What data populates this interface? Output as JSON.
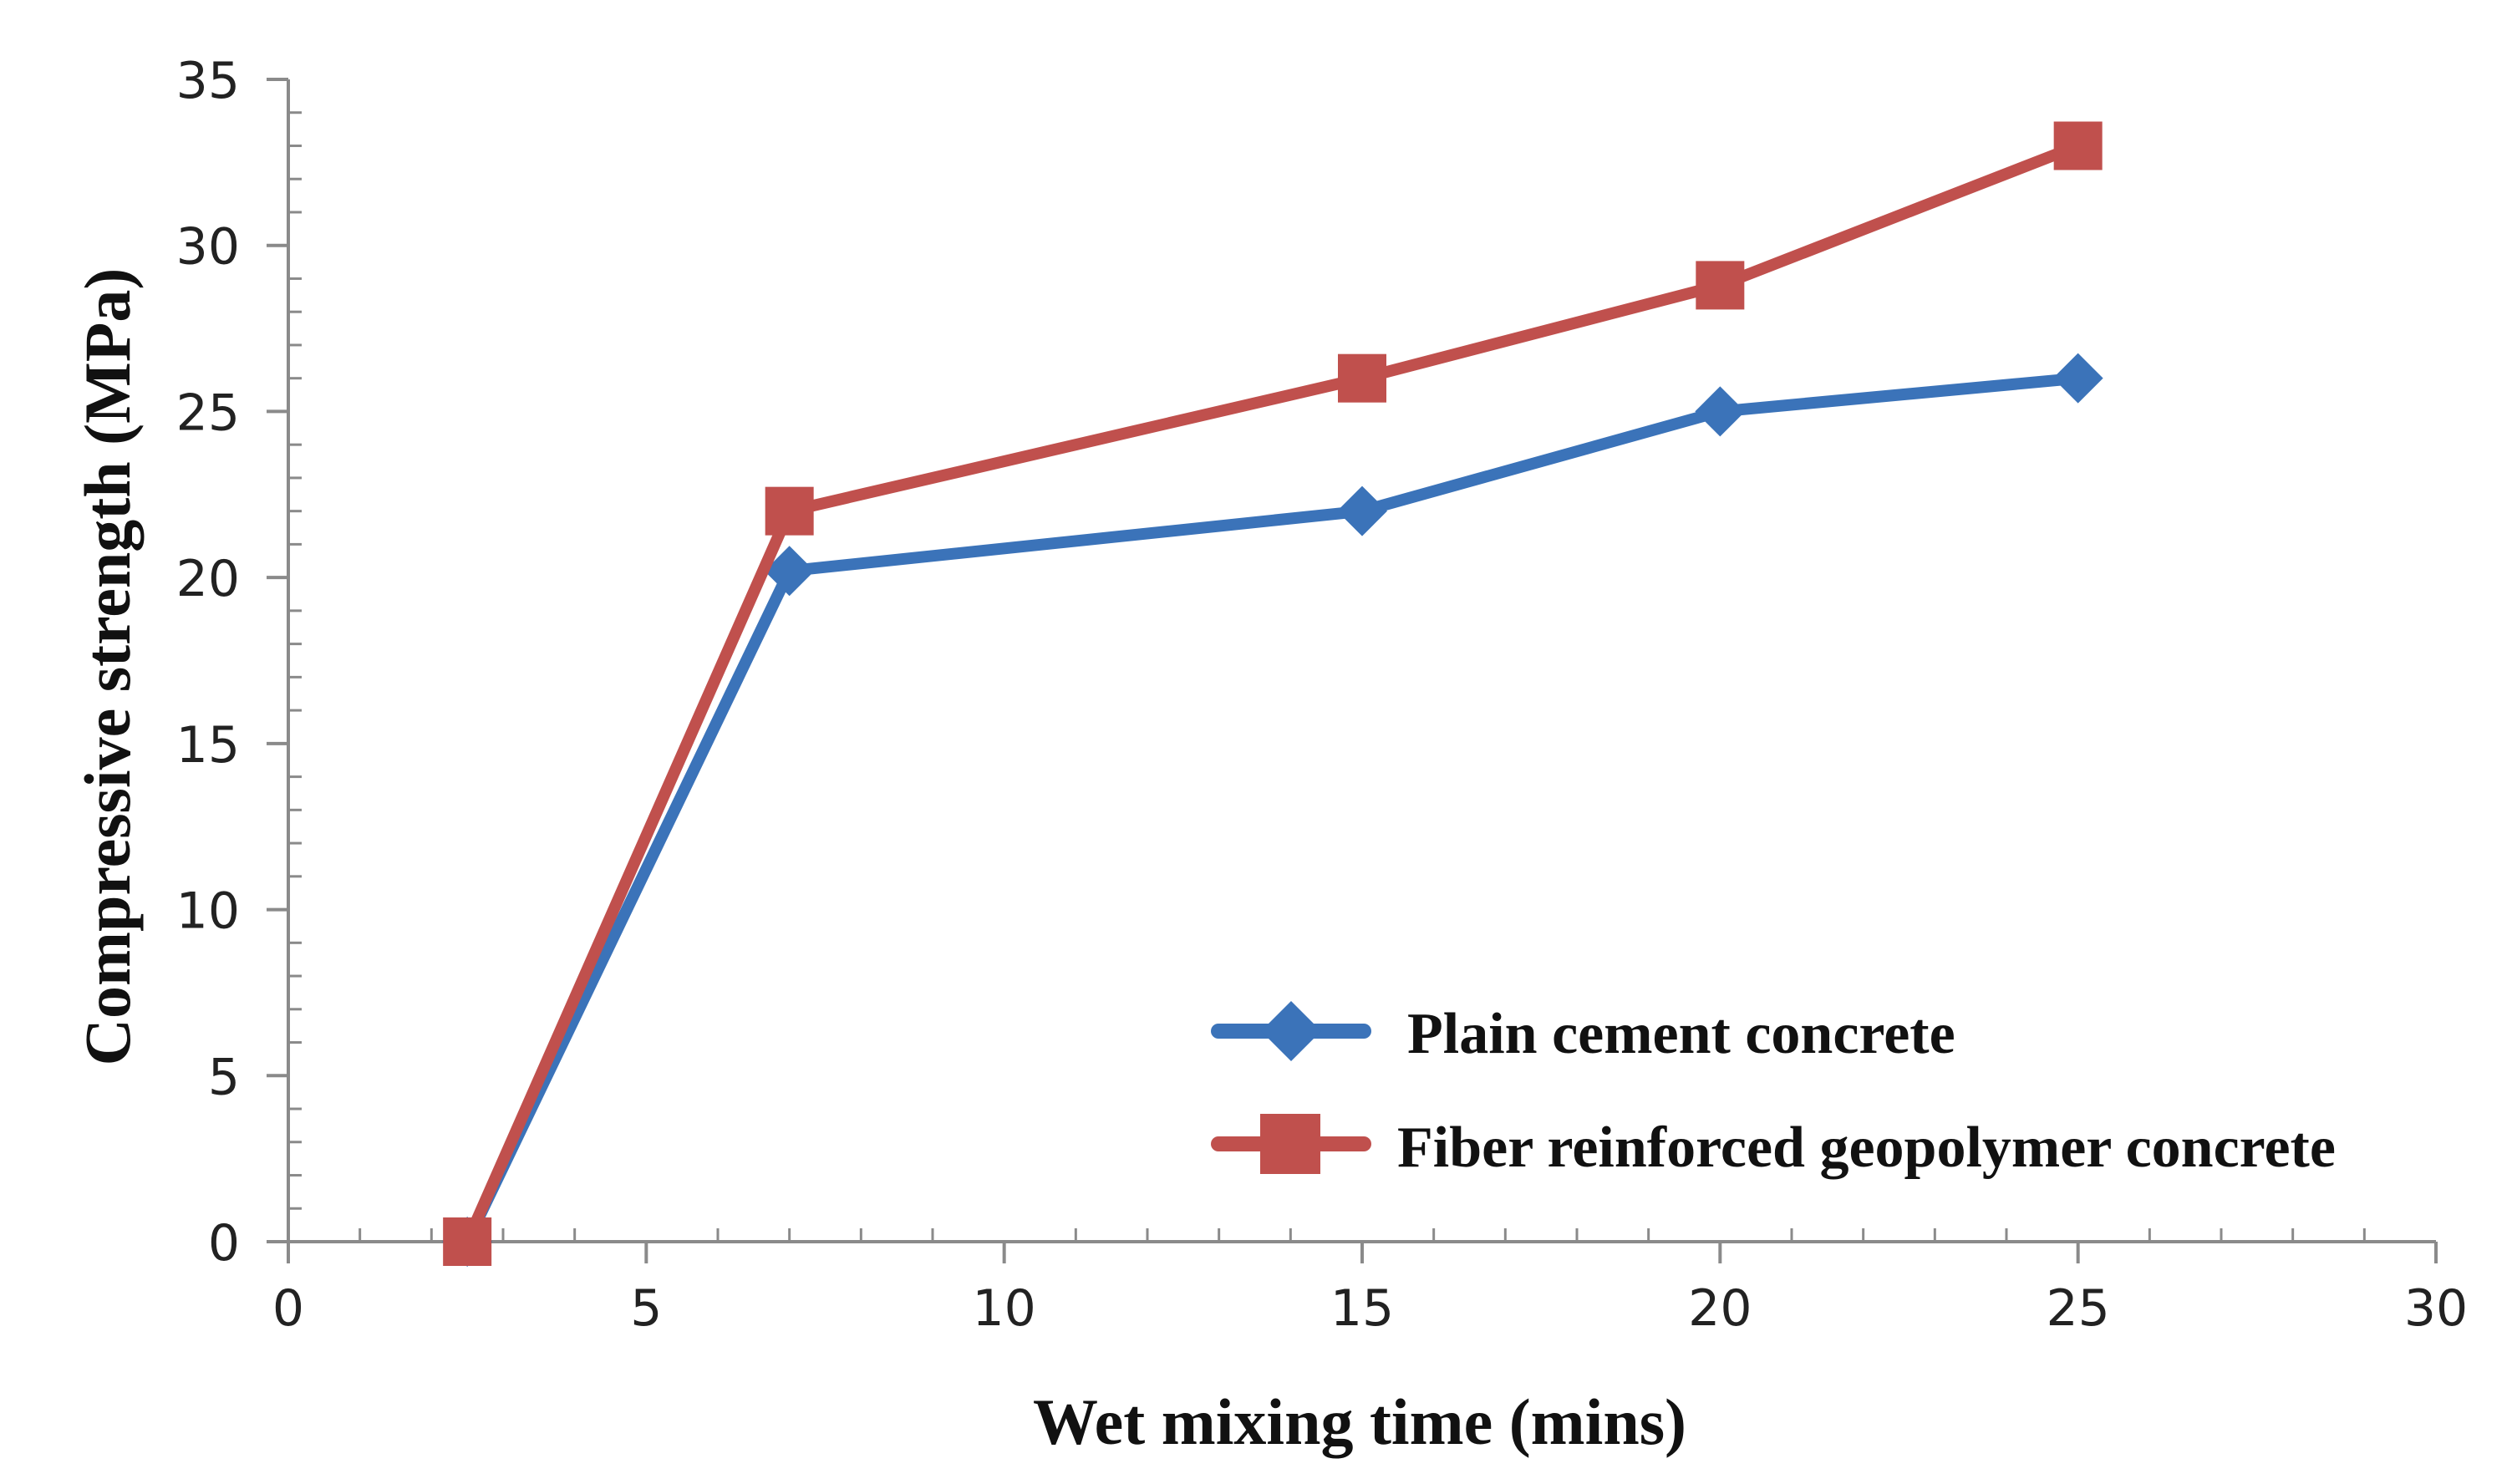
{
  "chart_data": {
    "type": "line",
    "title": "",
    "xlabel": "Wet mixing time (mins)",
    "ylabel": "Compressive strength (MPa)",
    "xlim": [
      0,
      30
    ],
    "ylim": [
      0,
      35
    ],
    "xticks": [
      0,
      5,
      10,
      15,
      20,
      25,
      30
    ],
    "yticks": [
      0,
      5,
      10,
      15,
      20,
      25,
      30,
      35
    ],
    "x_tick_labels": [
      "0",
      "5",
      "10",
      "15",
      "20",
      "25",
      "30"
    ],
    "y_tick_labels": [
      "0",
      "5",
      "10",
      "15",
      "20",
      "25",
      "30",
      "35"
    ],
    "grid": false,
    "legend_position": "bottom-right",
    "series": [
      {
        "name": "Plain cement concrete",
        "marker": "diamond",
        "color": "#3b73b9",
        "x": [
          2.5,
          7,
          15,
          20,
          25
        ],
        "y": [
          0,
          20.2,
          22,
          25,
          26
        ]
      },
      {
        "name": "Fiber reinforced geopolymer concrete",
        "marker": "square",
        "color": "#c0504d",
        "x": [
          2.5,
          7,
          15,
          20,
          25
        ],
        "y": [
          0,
          22,
          26,
          28.8,
          33
        ]
      }
    ]
  }
}
